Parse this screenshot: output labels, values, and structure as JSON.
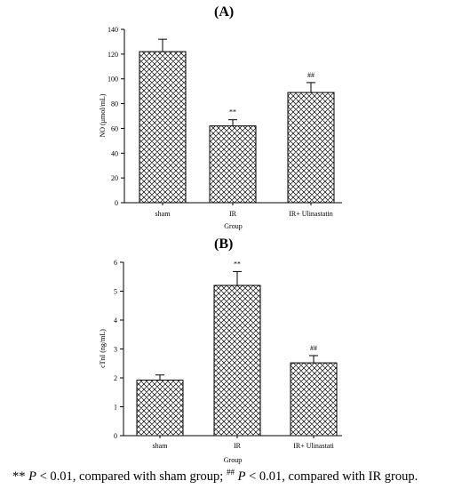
{
  "panels": [
    {
      "label": "A",
      "chart_data": {
        "type": "bar",
        "categories": [
          "sham",
          "IR",
          "IR+ Ulinastatin"
        ],
        "values": [
          122,
          62,
          89
        ],
        "errors": [
          10,
          5,
          8
        ],
        "annotations": [
          "",
          "**",
          "##"
        ],
        "xlabel": "Group",
        "ylabel": "NO (μmol/mL)",
        "ylim": [
          0,
          140
        ],
        "yticks": [
          0,
          20,
          40,
          60,
          80,
          100,
          120,
          140
        ],
        "grid": false,
        "bar_fill": "crosshatch"
      }
    },
    {
      "label": "B",
      "chart_data": {
        "type": "bar",
        "categories": [
          "sham",
          "IR",
          "IR+ Ulinastati"
        ],
        "values": [
          1.92,
          5.2,
          2.52
        ],
        "errors": [
          0.18,
          0.48,
          0.25
        ],
        "annotations": [
          "",
          "**",
          "##"
        ],
        "xlabel": "Group",
        "ylabel": "cTnI (ng/mL)",
        "ylim": [
          0,
          6
        ],
        "yticks": [
          0,
          1,
          2,
          3,
          4,
          5,
          6
        ],
        "grid": false,
        "bar_fill": "crosshatch"
      }
    }
  ],
  "titles": {
    "a": "(A)",
    "b": "(B)"
  },
  "footnote": {
    "p1_stars": "** ",
    "p1_italic": "P",
    "p1_rest": " < 0.01, compared with sham group; ",
    "p2_sup": "##",
    "p2_italic": " P",
    "p2_rest": " < 0.01, compared with IR group."
  },
  "colors": {
    "bar_stroke": "#000000",
    "hatch": "#000000",
    "background": "#ffffff"
  }
}
